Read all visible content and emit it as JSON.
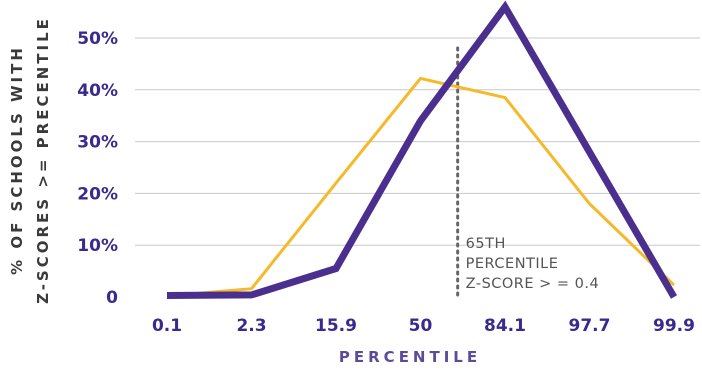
{
  "chart_data": {
    "type": "line",
    "title": "",
    "xlabel": "PERCENTILE",
    "ylabel": [
      "% OF SCHOOLS WITH",
      "Z-SCORES >= PRECENTILE"
    ],
    "categories": [
      "0.1",
      "2.3",
      "15.9",
      "50",
      "84.1",
      "97.7",
      "99.9"
    ],
    "ylim": [
      0,
      50
    ],
    "yticks": [
      0,
      10,
      20,
      30,
      40,
      50
    ],
    "ytick_labels": [
      "0",
      "10%",
      "20%",
      "30%",
      "40%",
      "50%"
    ],
    "grid": true,
    "series": [
      {
        "color": "#4b2f8f",
        "values": [
          0.3,
          0.4,
          5.5,
          34,
          56,
          28,
          0
        ]
      },
      {
        "color": "#f5b929",
        "values": [
          0.2,
          1.6,
          22,
          42.2,
          38.5,
          18,
          2.3
        ]
      }
    ],
    "reference_line": {
      "x": 65,
      "lines": [
        "65TH",
        "PERCENTILE",
        "Z-SCORE > = 0.4"
      ]
    }
  }
}
